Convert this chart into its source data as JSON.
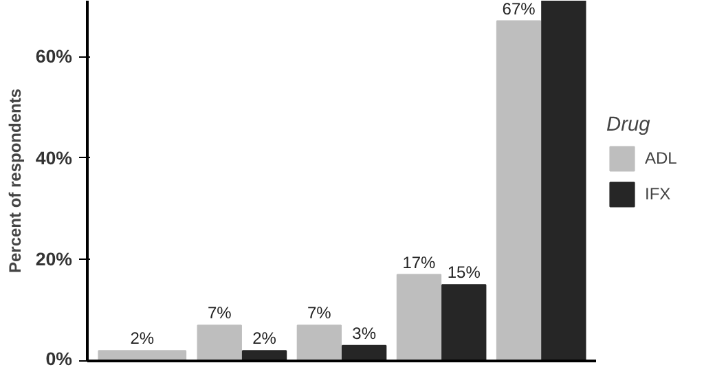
{
  "chart_data": {
    "type": "bar",
    "ylabel": "Percent of respondents",
    "legend_title": "Drug",
    "categories": [
      null,
      null,
      null,
      null,
      null
    ],
    "series": [
      {
        "name": "ADL",
        "color": "#bebebe",
        "values": [
          2,
          7,
          7,
          17,
          67
        ],
        "value_labels": [
          "2%",
          "7%",
          "7%",
          "17%",
          "67%"
        ]
      },
      {
        "name": "IFX",
        "color": "#262626",
        "values": [
          null,
          2,
          3,
          15,
          71
        ],
        "value_labels": [
          null,
          "2%",
          "3%",
          "15%",
          null
        ]
      }
    ],
    "ylim": [
      0,
      71
    ],
    "yticks": [
      {
        "value": 0,
        "label": "0%"
      },
      {
        "value": 20,
        "label": "20%"
      },
      {
        "value": 40,
        "label": "40%"
      },
      {
        "value": 60,
        "label": "60%"
      }
    ],
    "grid": false,
    "legend": "right",
    "tick_labels": "y"
  }
}
